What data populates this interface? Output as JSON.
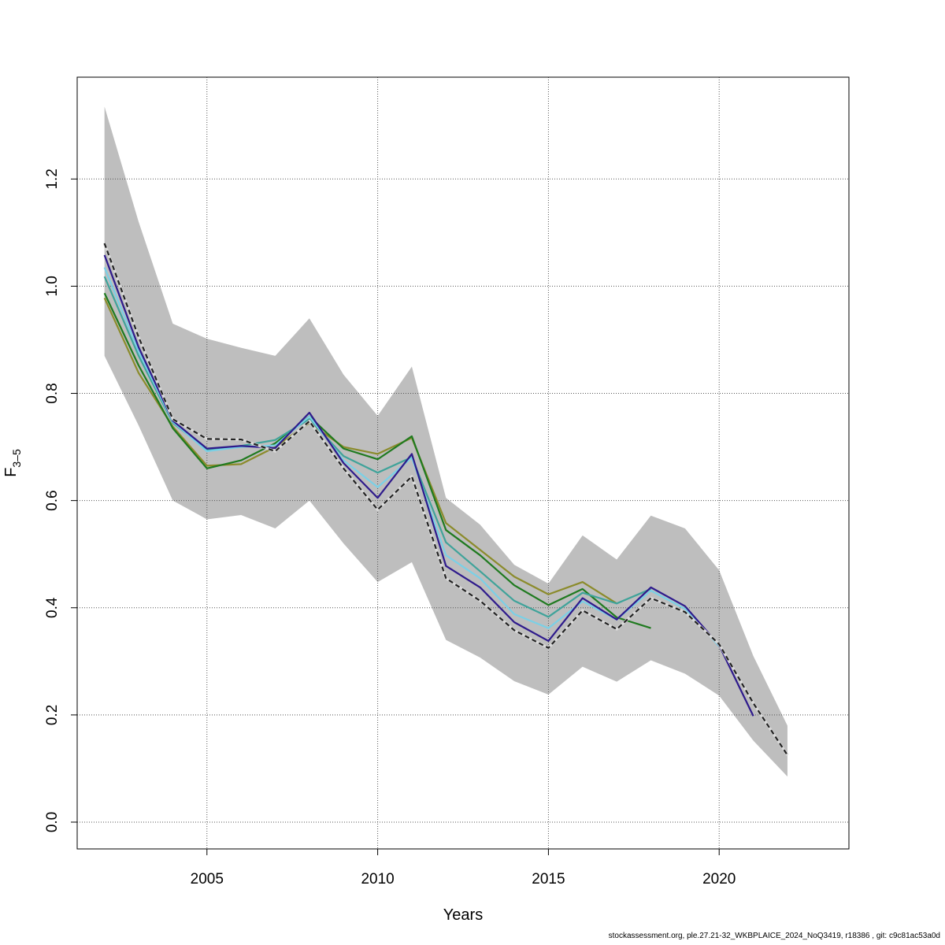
{
  "chart_data": {
    "type": "line",
    "xlabel": "Years",
    "ylabel_main": "F",
    "ylabel_sub": "3–5",
    "xlim": [
      2001.2,
      2023.8
    ],
    "ylim": [
      -0.05,
      1.39
    ],
    "x_ticks": [
      2005,
      2010,
      2015,
      2020
    ],
    "y_ticks": [
      0.0,
      0.2,
      0.4,
      0.6,
      0.8,
      1.0,
      1.2
    ],
    "grid": true,
    "band": {
      "x": [
        2002,
        2003,
        2004,
        2005,
        2006,
        2007,
        2008,
        2009,
        2010,
        2011,
        2012,
        2013,
        2014,
        2015,
        2016,
        2017,
        2018,
        2019,
        2020,
        2021,
        2022
      ],
      "upper": [
        1.335,
        1.12,
        0.93,
        0.902,
        0.885,
        0.87,
        0.94,
        0.835,
        0.758,
        0.85,
        0.605,
        0.555,
        0.48,
        0.445,
        0.535,
        0.49,
        0.572,
        0.548,
        0.47,
        0.31,
        0.18
      ],
      "lower": [
        0.87,
        0.74,
        0.6,
        0.565,
        0.573,
        0.548,
        0.6,
        0.52,
        0.448,
        0.485,
        0.34,
        0.307,
        0.263,
        0.238,
        0.29,
        0.262,
        0.302,
        0.277,
        0.236,
        0.152,
        0.085
      ],
      "color": "#bebebe"
    },
    "series": [
      {
        "color": "#8b8b2b",
        "dashed": false,
        "x": [
          2002,
          2003,
          2004,
          2005,
          2006,
          2007,
          2008,
          2009,
          2010,
          2011,
          2012,
          2013,
          2014,
          2015,
          2016,
          2017
        ],
        "values": [
          0.978,
          0.838,
          0.738,
          0.665,
          0.668,
          0.7,
          0.745,
          0.7,
          0.687,
          0.717,
          0.558,
          0.508,
          0.458,
          0.425,
          0.448,
          0.408
        ]
      },
      {
        "color": "#1f7a1f",
        "dashed": false,
        "x": [
          2002,
          2003,
          2004,
          2005,
          2006,
          2007,
          2008,
          2009,
          2010,
          2011,
          2012,
          2013,
          2014,
          2015,
          2016,
          2017,
          2018
        ],
        "values": [
          0.987,
          0.852,
          0.735,
          0.66,
          0.675,
          0.707,
          0.757,
          0.697,
          0.677,
          0.72,
          0.545,
          0.498,
          0.442,
          0.405,
          0.435,
          0.382,
          0.362
        ]
      },
      {
        "color": "#3fa39a",
        "dashed": false,
        "x": [
          2002,
          2003,
          2004,
          2005,
          2006,
          2007,
          2008,
          2009,
          2010,
          2011,
          2012,
          2013,
          2014,
          2015,
          2016,
          2017,
          2018
        ],
        "values": [
          1.018,
          0.87,
          0.745,
          0.695,
          0.702,
          0.713,
          0.752,
          0.683,
          0.652,
          0.681,
          0.522,
          0.468,
          0.413,
          0.383,
          0.428,
          0.408,
          0.435
        ]
      },
      {
        "color": "#7ad0e6",
        "dashed": false,
        "x": [
          2002,
          2003,
          2004,
          2005,
          2006,
          2007,
          2008,
          2009,
          2010,
          2011,
          2012,
          2013,
          2014,
          2015,
          2016,
          2017,
          2018,
          2019,
          2020
        ],
        "values": [
          1.035,
          0.878,
          0.747,
          0.692,
          0.7,
          0.703,
          0.757,
          0.675,
          0.625,
          0.68,
          0.498,
          0.455,
          0.388,
          0.362,
          0.412,
          0.378,
          0.432,
          0.398,
          0.328
        ]
      },
      {
        "color": "#2e1a8c",
        "dashed": false,
        "x": [
          2002,
          2003,
          2004,
          2005,
          2006,
          2007,
          2008,
          2009,
          2010,
          2011,
          2012,
          2013,
          2014,
          2015,
          2016,
          2017,
          2018,
          2019,
          2020,
          2021
        ],
        "values": [
          1.058,
          0.886,
          0.749,
          0.697,
          0.702,
          0.698,
          0.764,
          0.67,
          0.605,
          0.687,
          0.478,
          0.438,
          0.373,
          0.338,
          0.418,
          0.378,
          0.438,
          0.403,
          0.33,
          0.198
        ]
      },
      {
        "color": "#222222",
        "dashed": true,
        "x": [
          2002,
          2003,
          2004,
          2005,
          2006,
          2007,
          2008,
          2009,
          2010,
          2011,
          2012,
          2013,
          2014,
          2015,
          2016,
          2017,
          2018,
          2019,
          2020,
          2021,
          2022
        ],
        "values": [
          1.08,
          0.905,
          0.752,
          0.715,
          0.714,
          0.692,
          0.748,
          0.66,
          0.583,
          0.645,
          0.455,
          0.413,
          0.358,
          0.325,
          0.395,
          0.36,
          0.418,
          0.392,
          0.332,
          0.222,
          0.125
        ]
      }
    ]
  },
  "footer": "stockassessment.org, ple.27.21-32_WKBPLAICE_2024_NoQ3419, r18386 , git: c9c81ac53a0d"
}
